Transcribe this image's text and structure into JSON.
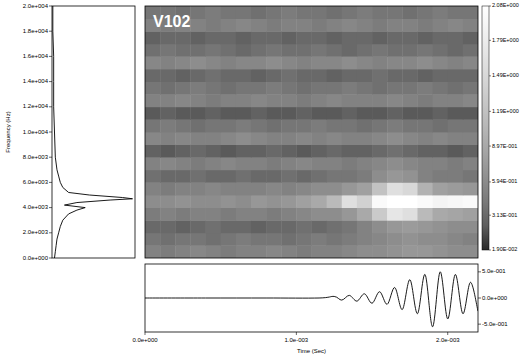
{
  "chart_data": [
    {
      "type": "line",
      "y_label": "Frequency (Hz)",
      "tick_labels": "y",
      "frequency": [
        20000,
        18000,
        16000,
        14000,
        12000,
        10000,
        8000,
        7000,
        6500,
        6000,
        5600,
        5200,
        5000,
        4800,
        4700,
        4600,
        4400,
        4200,
        4000,
        3800,
        3500,
        3000,
        2500,
        2000,
        1500,
        1000,
        500,
        0
      ],
      "amplitude": [
        0.01,
        0.01,
        0.02,
        0.02,
        0.02,
        0.03,
        0.04,
        0.06,
        0.08,
        0.1,
        0.13,
        0.2,
        0.45,
        0.85,
        0.97,
        0.7,
        0.3,
        0.15,
        0.4,
        0.3,
        0.2,
        0.13,
        0.1,
        0.08,
        0.06,
        0.05,
        0.04,
        0.03
      ],
      "xlim": [
        0,
        1
      ],
      "ylim": [
        0,
        20000
      ],
      "yticks": [
        {
          "value": 0,
          "label": "0.0e+000"
        },
        {
          "value": 2000,
          "label": "2.0e+003"
        },
        {
          "value": 4000,
          "label": "4.0e+003"
        },
        {
          "value": 6000,
          "label": "6.0e+003"
        },
        {
          "value": 8000,
          "label": "8.0e+003"
        },
        {
          "value": 10000,
          "label": "1.0e+004"
        },
        {
          "value": 12000,
          "label": "1.2e+004"
        },
        {
          "value": 14000,
          "label": "1.4e+004"
        },
        {
          "value": 16000,
          "label": "1.6e+004"
        },
        {
          "value": 18000,
          "label": "1.8e+004"
        },
        {
          "value": 20000,
          "label": "2.0e+004"
        }
      ]
    },
    {
      "type": "heatmap",
      "title": "V102",
      "tick_labels": false,
      "xlim": [
        0,
        0.0022
      ],
      "ylim": [
        0,
        20000
      ],
      "cells": [
        [
          0.5,
          0.45,
          0.5,
          0.55,
          0.5,
          0.45,
          0.5,
          0.5,
          0.55,
          0.5,
          0.45,
          0.5,
          0.5,
          0.55,
          0.6,
          0.6,
          0.65,
          0.7,
          0.7,
          0.65,
          0.6,
          0.6
        ],
        [
          0.4,
          0.35,
          0.4,
          0.4,
          0.35,
          0.4,
          0.45,
          0.4,
          0.4,
          0.35,
          0.4,
          0.45,
          0.4,
          0.45,
          0.5,
          0.55,
          0.6,
          0.65,
          0.6,
          0.6,
          0.55,
          0.5
        ],
        [
          0.3,
          0.3,
          0.25,
          0.3,
          0.35,
          0.3,
          0.3,
          0.25,
          0.3,
          0.3,
          0.35,
          0.3,
          0.35,
          0.4,
          0.5,
          0.6,
          0.7,
          0.75,
          0.7,
          0.65,
          0.6,
          0.6
        ],
        [
          0.45,
          0.5,
          0.45,
          0.5,
          0.5,
          0.45,
          0.5,
          0.5,
          0.45,
          0.5,
          0.55,
          0.6,
          0.6,
          0.7,
          0.9,
          1.3,
          1.7,
          1.6,
          1.1,
          0.9,
          0.85,
          0.8
        ],
        [
          0.6,
          0.6,
          0.65,
          0.6,
          0.6,
          0.65,
          0.6,
          0.7,
          0.65,
          0.7,
          0.8,
          0.9,
          1.1,
          1.6,
          1.4,
          2.0,
          2.08,
          2.08,
          2.0,
          1.9,
          1.95,
          2.0
        ],
        [
          0.5,
          0.45,
          0.5,
          0.5,
          0.55,
          0.5,
          0.5,
          0.5,
          0.55,
          0.5,
          0.55,
          0.6,
          0.6,
          0.7,
          0.8,
          1.2,
          1.6,
          1.5,
          1.0,
          0.8,
          0.75,
          0.7
        ],
        [
          0.35,
          0.3,
          0.3,
          0.35,
          0.3,
          0.3,
          0.35,
          0.3,
          0.3,
          0.35,
          0.3,
          0.35,
          0.4,
          0.4,
          0.45,
          0.6,
          0.7,
          0.65,
          0.5,
          0.45,
          0.45,
          0.4
        ],
        [
          0.5,
          0.55,
          0.5,
          0.45,
          0.5,
          0.55,
          0.5,
          0.5,
          0.45,
          0.5,
          0.55,
          0.5,
          0.5,
          0.45,
          0.5,
          0.55,
          0.6,
          0.55,
          0.5,
          0.5,
          0.45,
          0.5
        ],
        [
          0.25,
          0.2,
          0.25,
          0.3,
          0.25,
          0.2,
          0.25,
          0.25,
          0.3,
          0.25,
          0.2,
          0.25,
          0.3,
          0.25,
          0.25,
          0.3,
          0.35,
          0.3,
          0.25,
          0.25,
          0.2,
          0.25
        ],
        [
          0.55,
          0.5,
          0.55,
          0.5,
          0.5,
          0.55,
          0.6,
          0.55,
          0.5,
          0.5,
          0.55,
          0.5,
          0.55,
          0.5,
          0.5,
          0.55,
          0.6,
          0.55,
          0.5,
          0.55,
          0.5,
          0.5
        ],
        [
          0.4,
          0.45,
          0.4,
          0.35,
          0.4,
          0.4,
          0.45,
          0.4,
          0.35,
          0.4,
          0.4,
          0.45,
          0.4,
          0.4,
          0.35,
          0.4,
          0.45,
          0.4,
          0.4,
          0.35,
          0.4,
          0.4
        ],
        [
          0.2,
          0.25,
          0.2,
          0.2,
          0.25,
          0.2,
          0.2,
          0.25,
          0.2,
          0.2,
          0.25,
          0.2,
          0.2,
          0.25,
          0.2,
          0.2,
          0.25,
          0.2,
          0.2,
          0.25,
          0.2,
          0.2
        ],
        [
          0.5,
          0.5,
          0.55,
          0.5,
          0.45,
          0.5,
          0.5,
          0.55,
          0.5,
          0.5,
          0.45,
          0.5,
          0.55,
          0.5,
          0.5,
          0.5,
          0.55,
          0.5,
          0.45,
          0.5,
          0.5,
          0.55
        ],
        [
          0.4,
          0.35,
          0.4,
          0.45,
          0.4,
          0.35,
          0.4,
          0.4,
          0.45,
          0.4,
          0.35,
          0.4,
          0.4,
          0.45,
          0.4,
          0.35,
          0.4,
          0.4,
          0.45,
          0.4,
          0.35,
          0.4
        ],
        [
          0.3,
          0.3,
          0.25,
          0.3,
          0.35,
          0.3,
          0.3,
          0.25,
          0.3,
          0.35,
          0.3,
          0.3,
          0.25,
          0.3,
          0.3,
          0.35,
          0.3,
          0.3,
          0.25,
          0.3,
          0.3,
          0.3
        ],
        [
          0.55,
          0.5,
          0.55,
          0.6,
          0.55,
          0.5,
          0.55,
          0.55,
          0.6,
          0.55,
          0.5,
          0.55,
          0.55,
          0.6,
          0.55,
          0.5,
          0.55,
          0.55,
          0.6,
          0.55,
          0.5,
          0.55
        ],
        [
          0.35,
          0.4,
          0.35,
          0.35,
          0.4,
          0.35,
          0.3,
          0.35,
          0.4,
          0.35,
          0.35,
          0.4,
          0.35,
          0.3,
          0.35,
          0.4,
          0.35,
          0.35,
          0.4,
          0.35,
          0.3,
          0.35
        ],
        [
          0.25,
          0.3,
          0.3,
          0.25,
          0.3,
          0.3,
          0.25,
          0.3,
          0.3,
          0.25,
          0.3,
          0.3,
          0.25,
          0.3,
          0.3,
          0.25,
          0.3,
          0.3,
          0.25,
          0.3,
          0.3,
          0.25
        ],
        [
          0.5,
          0.45,
          0.5,
          0.5,
          0.45,
          0.5,
          0.55,
          0.5,
          0.45,
          0.5,
          0.5,
          0.45,
          0.5,
          0.55,
          0.5,
          0.45,
          0.5,
          0.5,
          0.45,
          0.5,
          0.55,
          0.5
        ],
        [
          0.4,
          0.4,
          0.35,
          0.4,
          0.45,
          0.4,
          0.4,
          0.35,
          0.4,
          0.45,
          0.4,
          0.4,
          0.35,
          0.4,
          0.45,
          0.4,
          0.4,
          0.35,
          0.4,
          0.45,
          0.4,
          0.4
        ]
      ],
      "colorbar_range": [
        0.019,
        2.08
      ],
      "colorbar_ticks": [
        {
          "value": 2.08,
          "label": "2.08E+000"
        },
        {
          "value": 1.79,
          "label": "1.79E+000"
        },
        {
          "value": 1.49,
          "label": "1.49E+000"
        },
        {
          "value": 1.19,
          "label": "1.19E+000"
        },
        {
          "value": 0.897,
          "label": "8.97E-001"
        },
        {
          "value": 0.594,
          "label": "5.94E-001"
        },
        {
          "value": 0.313,
          "label": "3.13E-001"
        },
        {
          "value": 0.019,
          "label": "1.90E-002"
        }
      ]
    },
    {
      "type": "line",
      "x_label": "Time (Sec)",
      "x": [
        0,
        0.0004,
        0.0008,
        0.00115,
        0.00125,
        0.0013,
        0.00135,
        0.0014,
        0.00145,
        0.0015,
        0.00155,
        0.0016,
        0.00165,
        0.0017,
        0.00175,
        0.0018,
        0.00185,
        0.0019,
        0.00195,
        0.002,
        0.00205,
        0.0021,
        0.00215,
        0.0022
      ],
      "values": [
        0,
        0,
        0,
        0,
        0.03,
        -0.04,
        0.05,
        -0.06,
        0.08,
        -0.1,
        0.12,
        -0.12,
        0.2,
        -0.22,
        0.35,
        -0.3,
        0.45,
        -0.55,
        0.5,
        -0.4,
        0.45,
        -0.3,
        0.3,
        -0.25
      ],
      "xlim": [
        0,
        0.0022
      ],
      "ylim": [
        -0.65,
        0.65
      ],
      "xticks": [
        {
          "value": 0,
          "label": "0.0e+000"
        },
        {
          "value": 0.001,
          "label": "1.0e-003"
        },
        {
          "value": 0.002,
          "label": "2.0e-003"
        }
      ],
      "yticks": [
        {
          "value": -0.5,
          "label": "-5.0e-001"
        },
        {
          "value": 0,
          "label": "0.0e+000"
        },
        {
          "value": 0.5,
          "label": "5.0e-001"
        }
      ]
    }
  ]
}
